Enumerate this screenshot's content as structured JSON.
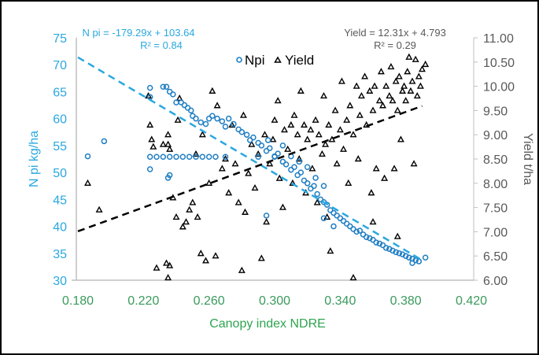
{
  "chart_data": {
    "type": "scatter",
    "xlabel": "Canopy index NDRE",
    "ylabel_left": "N pi kg/ha",
    "ylabel_right": "Yield t/ha",
    "xlim": [
      0.18,
      0.42
    ],
    "ylim_left": [
      30,
      75
    ],
    "ylim_right": [
      6.0,
      11.0
    ],
    "x_ticks": [
      "0.180",
      "0.220",
      "0.260",
      "0.300",
      "0.340",
      "0.380",
      "0.420"
    ],
    "y_left_ticks": [
      "30",
      "35",
      "40",
      "45",
      "50",
      "55",
      "60",
      "65",
      "70",
      "75"
    ],
    "y_right_ticks": [
      "6.00",
      "6.50",
      "7.00",
      "7.50",
      "8.00",
      "8.50",
      "9.00",
      "9.50",
      "10.00",
      "10.50",
      "11.00"
    ],
    "grid": false,
    "legend_position": "top-center",
    "colors": {
      "npi": "#1f7ec4",
      "npi_axis": "#2aa8df",
      "yield": "#000000",
      "x_axis_text": "#3a9a5c",
      "right_axis_text": "#595959"
    },
    "series": [
      {
        "name": "Npi",
        "axis": "left",
        "marker": "circle",
        "points": [
          [
            0.186,
            53
          ],
          [
            0.196,
            55.8
          ],
          [
            0.224,
            50.6
          ],
          [
            0.235,
            49
          ],
          [
            0.236,
            49.5
          ],
          [
            0.295,
            42
          ],
          [
            0.33,
            41.5
          ],
          [
            0.336,
            40
          ],
          [
            0.224,
            52.9
          ],
          [
            0.228,
            52.9
          ],
          [
            0.232,
            52.9
          ],
          [
            0.236,
            52.9
          ],
          [
            0.24,
            52.9
          ],
          [
            0.244,
            52.9
          ],
          [
            0.248,
            52.9
          ],
          [
            0.252,
            52.9
          ],
          [
            0.256,
            52.9
          ],
          [
            0.26,
            52.9
          ],
          [
            0.264,
            52.9
          ],
          [
            0.27,
            52.9
          ],
          [
            0.29,
            52.9
          ],
          [
            0.3,
            52.9
          ],
          [
            0.224,
            65.7
          ],
          [
            0.224,
            64
          ],
          [
            0.232,
            65.9
          ],
          [
            0.234,
            65.9
          ],
          [
            0.236,
            65
          ],
          [
            0.238,
            64.5
          ],
          [
            0.24,
            63
          ],
          [
            0.243,
            63
          ],
          [
            0.245,
            62.5
          ],
          [
            0.247,
            62
          ],
          [
            0.249,
            61.5
          ],
          [
            0.25,
            60.5
          ],
          [
            0.252,
            60
          ],
          [
            0.255,
            59.3
          ],
          [
            0.258,
            59
          ],
          [
            0.26,
            60
          ],
          [
            0.262,
            60.5
          ],
          [
            0.265,
            60
          ],
          [
            0.268,
            59.5
          ],
          [
            0.27,
            58.5
          ],
          [
            0.272,
            60
          ],
          [
            0.275,
            59
          ],
          [
            0.278,
            58
          ],
          [
            0.28,
            57.5
          ],
          [
            0.283,
            57
          ],
          [
            0.285,
            56
          ],
          [
            0.287,
            56.5
          ],
          [
            0.29,
            55.5
          ],
          [
            0.292,
            55
          ],
          [
            0.295,
            54
          ],
          [
            0.297,
            54.5
          ],
          [
            0.3,
            53
          ],
          [
            0.302,
            53.5
          ],
          [
            0.305,
            52
          ],
          [
            0.307,
            51.5
          ],
          [
            0.31,
            50.5
          ],
          [
            0.312,
            51
          ],
          [
            0.314,
            49.5
          ],
          [
            0.316,
            50
          ],
          [
            0.318,
            48.5
          ],
          [
            0.32,
            48
          ],
          [
            0.322,
            47
          ],
          [
            0.324,
            47.5
          ],
          [
            0.326,
            46
          ],
          [
            0.328,
            45
          ],
          [
            0.33,
            44.5
          ],
          [
            0.332,
            44
          ],
          [
            0.334,
            43
          ],
          [
            0.336,
            42.5
          ],
          [
            0.338,
            42
          ],
          [
            0.34,
            41.5
          ],
          [
            0.342,
            41
          ],
          [
            0.344,
            40.5
          ],
          [
            0.346,
            40
          ],
          [
            0.348,
            39.5
          ],
          [
            0.35,
            39
          ],
          [
            0.352,
            39.2
          ],
          [
            0.354,
            38.5
          ],
          [
            0.356,
            38
          ],
          [
            0.358,
            37.8
          ],
          [
            0.36,
            37.5
          ],
          [
            0.362,
            37
          ],
          [
            0.364,
            36.8
          ],
          [
            0.366,
            36.5
          ],
          [
            0.368,
            36
          ],
          [
            0.37,
            35.8
          ],
          [
            0.372,
            35.5
          ],
          [
            0.374,
            35.2
          ],
          [
            0.376,
            35
          ],
          [
            0.378,
            34.8
          ],
          [
            0.38,
            34.5
          ],
          [
            0.382,
            34.2
          ],
          [
            0.384,
            34
          ],
          [
            0.386,
            33.7
          ],
          [
            0.388,
            33.5
          ],
          [
            0.392,
            34.2
          ],
          [
            0.384,
            33.2
          ],
          [
            0.296,
            56
          ],
          [
            0.305,
            55
          ],
          [
            0.31,
            53
          ],
          [
            0.315,
            52
          ],
          [
            0.32,
            51
          ],
          [
            0.325,
            49
          ],
          [
            0.33,
            47.5
          ]
        ],
        "trendline": {
          "equation": "N pi = -179.29x + 103.64",
          "r2": "R² = 0.84",
          "slope": -179.29,
          "intercept": 103.64,
          "x_range": [
            0.18,
            0.39
          ]
        }
      },
      {
        "name": "Yield",
        "axis": "right",
        "marker": "triangle",
        "points": [
          [
            0.186,
            8.0
          ],
          [
            0.193,
            7.45
          ],
          [
            0.224,
            9.2
          ],
          [
            0.225,
            8.9
          ],
          [
            0.226,
            8.75
          ],
          [
            0.223,
            9.8
          ],
          [
            0.232,
            8.8
          ],
          [
            0.235,
            9.0
          ],
          [
            0.235,
            8.8
          ],
          [
            0.236,
            8.7
          ],
          [
            0.228,
            6.25
          ],
          [
            0.234,
            6.35
          ],
          [
            0.236,
            6.3
          ],
          [
            0.235,
            6.05
          ],
          [
            0.24,
            7.3
          ],
          [
            0.242,
            9.75
          ],
          [
            0.241,
            9.3
          ],
          [
            0.238,
            7.7
          ],
          [
            0.244,
            7.1
          ],
          [
            0.246,
            7.2
          ],
          [
            0.248,
            7.45
          ],
          [
            0.25,
            7.6
          ],
          [
            0.252,
            8.6
          ],
          [
            0.253,
            7.3
          ],
          [
            0.255,
            6.55
          ],
          [
            0.258,
            6.4
          ],
          [
            0.256,
            9.0
          ],
          [
            0.26,
            8.0
          ],
          [
            0.262,
            9.9
          ],
          [
            0.264,
            6.5
          ],
          [
            0.265,
            9.6
          ],
          [
            0.268,
            8.3
          ],
          [
            0.27,
            8.5
          ],
          [
            0.272,
            7.8
          ],
          [
            0.274,
            9.2
          ],
          [
            0.276,
            8.4
          ],
          [
            0.278,
            7.6
          ],
          [
            0.28,
            6.2
          ],
          [
            0.281,
            9.4
          ],
          [
            0.282,
            7.4
          ],
          [
            0.284,
            8.2
          ],
          [
            0.286,
            8.8
          ],
          [
            0.288,
            7.9
          ],
          [
            0.29,
            8.6
          ],
          [
            0.292,
            6.45
          ],
          [
            0.294,
            9.0
          ],
          [
            0.295,
            7.2
          ],
          [
            0.297,
            8.4
          ],
          [
            0.299,
            8.9
          ],
          [
            0.3,
            9.3
          ],
          [
            0.302,
            9.7
          ],
          [
            0.303,
            8.1
          ],
          [
            0.305,
            7.5
          ],
          [
            0.306,
            9.1
          ],
          [
            0.308,
            8.7
          ],
          [
            0.31,
            9.2
          ],
          [
            0.311,
            8.0
          ],
          [
            0.312,
            9.4
          ],
          [
            0.314,
            9.0
          ],
          [
            0.315,
            8.5
          ],
          [
            0.316,
            9.9
          ],
          [
            0.318,
            9.2
          ],
          [
            0.319,
            7.8
          ],
          [
            0.32,
            8.9
          ],
          [
            0.322,
            9.1
          ],
          [
            0.323,
            8.3
          ],
          [
            0.325,
            9.3
          ],
          [
            0.326,
            7.6
          ],
          [
            0.327,
            9.0
          ],
          [
            0.329,
            8.6
          ],
          [
            0.33,
            9.8
          ],
          [
            0.331,
            8.8
          ],
          [
            0.332,
            7.3
          ],
          [
            0.333,
            9.2
          ],
          [
            0.334,
            6.6
          ],
          [
            0.335,
            8.9
          ],
          [
            0.337,
            9.5
          ],
          [
            0.338,
            8.4
          ],
          [
            0.34,
            9.1
          ],
          [
            0.341,
            10.1
          ],
          [
            0.342,
            8.7
          ],
          [
            0.344,
            9.3
          ],
          [
            0.345,
            8.0
          ],
          [
            0.346,
            9.6
          ],
          [
            0.348,
            6.05
          ],
          [
            0.348,
            9.0
          ],
          [
            0.35,
            10.0
          ],
          [
            0.351,
            8.5
          ],
          [
            0.352,
            9.4
          ],
          [
            0.353,
            9.8
          ],
          [
            0.355,
            10.2
          ],
          [
            0.356,
            9.2
          ],
          [
            0.358,
            9.9
          ],
          [
            0.359,
            7.8
          ],
          [
            0.36,
            9.5
          ],
          [
            0.361,
            10.0
          ],
          [
            0.362,
            8.3
          ],
          [
            0.364,
            9.7
          ],
          [
            0.365,
            10.3
          ],
          [
            0.366,
            9.6
          ],
          [
            0.367,
            8.1
          ],
          [
            0.368,
            10.0
          ],
          [
            0.37,
            9.8
          ],
          [
            0.371,
            10.4
          ],
          [
            0.372,
            9.7
          ],
          [
            0.373,
            8.3
          ],
          [
            0.374,
            10.1
          ],
          [
            0.375,
            9.5
          ],
          [
            0.376,
            10.2
          ],
          [
            0.377,
            8.9
          ],
          [
            0.378,
            9.9
          ],
          [
            0.379,
            10.0
          ],
          [
            0.38,
            9.7
          ],
          [
            0.381,
            10.3
          ],
          [
            0.382,
            10.6
          ],
          [
            0.383,
            9.9
          ],
          [
            0.384,
            10.1
          ],
          [
            0.385,
            8.4
          ],
          [
            0.386,
            10.55
          ],
          [
            0.387,
            9.8
          ],
          [
            0.388,
            10.2
          ],
          [
            0.389,
            10.0
          ],
          [
            0.39,
            10.35
          ],
          [
            0.392,
            10.45
          ],
          [
            0.375,
            6.9
          ],
          [
            0.36,
            7.2
          ]
        ],
        "trendline": {
          "equation": "Yield = 12.31x + 4.793",
          "r2": "R² = 0.29",
          "slope": 12.31,
          "intercept": 4.793,
          "x_range": [
            0.18,
            0.39
          ]
        }
      }
    ]
  }
}
